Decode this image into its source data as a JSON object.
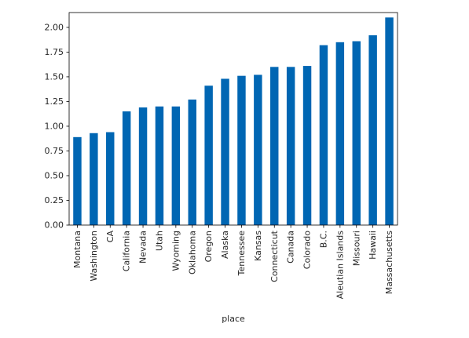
{
  "chart_data": {
    "type": "bar",
    "xlabel": "place",
    "ylabel": "",
    "title": "",
    "ylim": [
      0,
      2.15
    ],
    "yticks": [
      0.0,
      0.25,
      0.5,
      0.75,
      1.0,
      1.25,
      1.5,
      1.75,
      2.0
    ],
    "ytick_labels": [
      "0.00",
      "0.25",
      "0.50",
      "0.75",
      "1.00",
      "1.25",
      "1.50",
      "1.75",
      "2.00"
    ],
    "categories": [
      "Montana",
      "Washington",
      "CA",
      "California",
      "Nevada",
      "Utah",
      "Wyoming",
      "Oklahoma",
      "Oregon",
      "Alaska",
      "Tennessee",
      "Kansas",
      "Connecticut",
      "Canada",
      "Colorado",
      "B.C.",
      "Aleutian Islands",
      "Missouri",
      "Hawaii",
      "Massachusetts"
    ],
    "values": [
      0.89,
      0.93,
      0.94,
      1.15,
      1.19,
      1.2,
      1.2,
      1.27,
      1.41,
      1.48,
      1.51,
      1.52,
      1.6,
      1.6,
      1.61,
      1.82,
      1.85,
      1.86,
      1.92,
      2.1
    ],
    "bar_color": "#0066b3",
    "grid": false
  }
}
